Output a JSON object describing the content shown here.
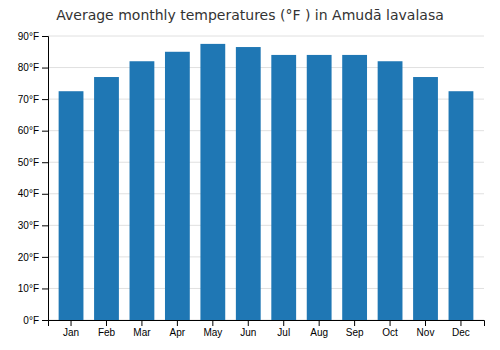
{
  "chart_data": {
    "type": "bar",
    "title": "Average monthly temperatures (°F ) in Amudā lavalasa",
    "categories": [
      "Jan",
      "Feb",
      "Mar",
      "Apr",
      "May",
      "Jun",
      "Jul",
      "Aug",
      "Sep",
      "Oct",
      "Nov",
      "Dec"
    ],
    "values": [
      72.5,
      77.0,
      82.0,
      85.0,
      87.5,
      86.5,
      84.0,
      84.0,
      84.0,
      82.0,
      77.0,
      72.5
    ],
    "ylim": [
      0,
      90
    ],
    "yticks": [
      {
        "value": 0,
        "label": "0°F"
      },
      {
        "value": 10,
        "label": "10°F"
      },
      {
        "value": 20,
        "label": "20°F"
      },
      {
        "value": 30,
        "label": "30°F"
      },
      {
        "value": 40,
        "label": "40°F"
      },
      {
        "value": 50,
        "label": "50°F"
      },
      {
        "value": 60,
        "label": "60°F"
      },
      {
        "value": 70,
        "label": "70°F"
      },
      {
        "value": 80,
        "label": "80°F"
      },
      {
        "value": 90,
        "label": "90°F"
      }
    ],
    "grid": true
  }
}
